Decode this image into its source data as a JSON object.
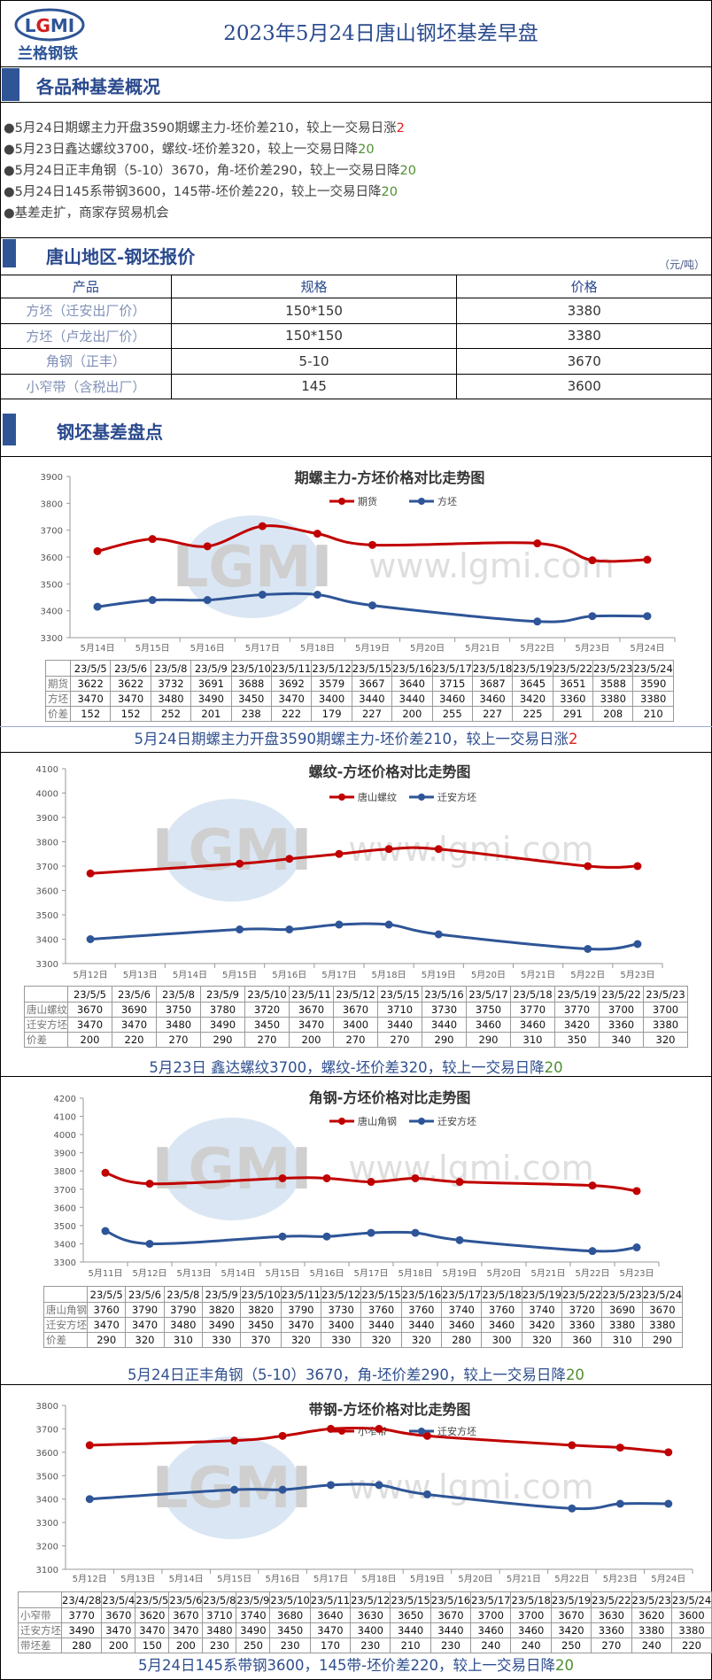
{
  "header": {
    "title": "2023年5月24日唐山钢坯基差早盘",
    "logo_text": "LGMI",
    "logo_cn": "兰格钢铁"
  },
  "overview": {
    "title": "各品种基差概况",
    "bullets": [
      {
        "text": "●5月24日期螺主力开盘3590期螺主力-坯价差210，较上一交易日涨",
        "change": "2",
        "dir": "up"
      },
      {
        "text": "●5月23日鑫达螺纹3700，螺纹-坯价差320，较上一交易日降",
        "change": "20",
        "dir": "down"
      },
      {
        "text": "●5月24日正丰角钢（5-10）3670，角-坯价差290，较上一交易日降",
        "change": "20",
        "dir": "down"
      },
      {
        "text": "●5月24日145系带钢3600，145带-坯价差220，较上一交易日降",
        "change": "20",
        "dir": "down"
      },
      {
        "text": "●基差走扩，商家存贸易机会",
        "change": "",
        "dir": ""
      }
    ]
  },
  "quote": {
    "title": "唐山地区-钢坯报价",
    "unit": "（元/吨）",
    "headers": [
      "产品",
      "规格",
      "价格"
    ],
    "rows": [
      [
        "方坯（迁安出厂价）",
        "150*150",
        "3380"
      ],
      [
        "方坯（卢龙出厂价）",
        "150*150",
        "3380"
      ],
      [
        "角钢（正丰）",
        "5-10",
        "3670"
      ],
      [
        "小窄带（含税出厂）",
        "145",
        "3600"
      ]
    ]
  },
  "basis": {
    "title": "钢坯基差盘点"
  },
  "watermark": {
    "logo": "LGMI",
    "url": "www.lgmi.com"
  },
  "colors": {
    "red": "#c00000",
    "blue": "#2e5597",
    "accent": "#2f5597"
  },
  "chart_data": [
    {
      "type": "line",
      "title": "期螺主力-方坯价格对比走势图",
      "ylim": [
        3300,
        3900
      ],
      "ystep": 100,
      "x": [
        "5月14日",
        "5月15日",
        "5月16日",
        "5月17日",
        "5月18日",
        "5月19日",
        "5月20日",
        "5月21日",
        "5月22日",
        "5月23日",
        "5月24日"
      ],
      "series": [
        {
          "name": "期货",
          "color": "#c00000",
          "values": [
            3622,
            3667,
            3640,
            3715,
            3687,
            3645,
            null,
            null,
            3651,
            3588,
            3590
          ]
        },
        {
          "name": "方坯",
          "color": "#2e5597",
          "values": [
            3415,
            3440,
            3440,
            3460,
            3460,
            3420,
            null,
            null,
            3360,
            3380,
            3380
          ]
        }
      ],
      "table": {
        "dates": [
          "23/5/5",
          "23/5/6",
          "23/5/8",
          "23/5/9",
          "23/5/10",
          "23/5/11",
          "23/5/12",
          "23/5/15",
          "23/5/16",
          "23/5/17",
          "23/5/18",
          "23/5/19",
          "23/5/22",
          "23/5/23",
          "23/5/24"
        ],
        "rows": [
          {
            "label": "期货",
            "values": [
              "3622",
              "3622",
              "3732",
              "3691",
              "3688",
              "3692",
              "3579",
              "3667",
              "3640",
              "3715",
              "3687",
              "3645",
              "3651",
              "3588",
              "3590"
            ]
          },
          {
            "label": "方坯",
            "values": [
              "3470",
              "3470",
              "3480",
              "3490",
              "3450",
              "3470",
              "3400",
              "3440",
              "3440",
              "3460",
              "3460",
              "3420",
              "3360",
              "3380",
              "3380"
            ]
          },
          {
            "label": "价差",
            "values": [
              "152",
              "152",
              "252",
              "201",
              "238",
              "222",
              "179",
              "227",
              "200",
              "255",
              "227",
              "225",
              "291",
              "208",
              "210"
            ]
          }
        ]
      },
      "caption": {
        "text": "5月24日期螺主力开盘3590期螺主力-坯价差210，较上一交易日涨",
        "change": "2",
        "dir": "up"
      }
    },
    {
      "type": "line",
      "title": "螺纹-方坯价格对比走势图",
      "ylim": [
        3300,
        4100
      ],
      "ystep": 100,
      "x": [
        "5月12日",
        "5月13日",
        "5月14日",
        "5月15日",
        "5月16日",
        "5月17日",
        "5月18日",
        "5月19日",
        "5月20日",
        "5月21日",
        "5月22日",
        "5月23日"
      ],
      "series": [
        {
          "name": "唐山螺纹",
          "color": "#c00000",
          "values": [
            3670,
            null,
            null,
            3710,
            3730,
            3750,
            3770,
            3770,
            null,
            null,
            3700,
            3700
          ]
        },
        {
          "name": "迁安方坯",
          "color": "#2e5597",
          "values": [
            3400,
            null,
            null,
            3440,
            3440,
            3460,
            3460,
            3420,
            null,
            null,
            3360,
            3380
          ]
        }
      ],
      "table": {
        "dates": [
          "23/5/5",
          "23/5/6",
          "23/5/8",
          "23/5/9",
          "23/5/10",
          "23/5/11",
          "23/5/12",
          "23/5/15",
          "23/5/16",
          "23/5/17",
          "23/5/18",
          "23/5/19",
          "23/5/22",
          "23/5/23"
        ],
        "rows": [
          {
            "label": "唐山螺纹",
            "values": [
              "3670",
              "3690",
              "3750",
              "3780",
              "3720",
              "3670",
              "3670",
              "3710",
              "3730",
              "3750",
              "3770",
              "3770",
              "3700",
              "3700"
            ]
          },
          {
            "label": "迁安方坯",
            "values": [
              "3470",
              "3470",
              "3480",
              "3490",
              "3450",
              "3470",
              "3400",
              "3440",
              "3440",
              "3460",
              "3460",
              "3420",
              "3360",
              "3380"
            ]
          },
          {
            "label": "价差",
            "values": [
              "200",
              "220",
              "270",
              "290",
              "270",
              "200",
              "270",
              "270",
              "290",
              "290",
              "310",
              "350",
              "340",
              "320"
            ]
          }
        ]
      },
      "caption": {
        "text": "5月23日 鑫达螺纹3700，螺纹-坯价差320，较上一交易日降",
        "change": "20",
        "dir": "down"
      }
    },
    {
      "type": "line",
      "title": "角钢-方坯价格对比走势图",
      "ylim": [
        3300,
        4200
      ],
      "ystep": 100,
      "x": [
        "5月11日",
        "5月12日",
        "5月13日",
        "5月14日",
        "5月15日",
        "5月16日",
        "5月17日",
        "5月18日",
        "5月19日",
        "5月20日",
        "5月21日",
        "5月22日",
        "5月23日"
      ],
      "series": [
        {
          "name": "唐山角钢",
          "color": "#c00000",
          "values": [
            3790,
            3730,
            null,
            null,
            3760,
            3760,
            3740,
            3760,
            3740,
            null,
            null,
            3720,
            3690
          ]
        },
        {
          "name": "迁安方坯",
          "color": "#2e5597",
          "values": [
            3470,
            3400,
            null,
            null,
            3440,
            3440,
            3460,
            3460,
            3420,
            null,
            null,
            3360,
            3380
          ]
        }
      ],
      "table": {
        "dates": [
          "23/5/5",
          "23/5/6",
          "23/5/8",
          "23/5/9",
          "23/5/10",
          "23/5/11",
          "23/5/12",
          "23/5/15",
          "23/5/16",
          "23/5/17",
          "23/5/18",
          "23/5/19",
          "23/5/22",
          "23/5/23",
          "23/5/24"
        ],
        "rows": [
          {
            "label": "唐山角钢",
            "values": [
              "3760",
              "3790",
              "3790",
              "3820",
              "3820",
              "3790",
              "3730",
              "3760",
              "3760",
              "3740",
              "3760",
              "3740",
              "3720",
              "3690",
              "3670"
            ]
          },
          {
            "label": "迁安方坯",
            "values": [
              "3470",
              "3470",
              "3480",
              "3490",
              "3450",
              "3470",
              "3400",
              "3440",
              "3440",
              "3460",
              "3460",
              "3420",
              "3360",
              "3380",
              "3380"
            ]
          },
          {
            "label": "价差",
            "values": [
              "290",
              "320",
              "310",
              "330",
              "370",
              "320",
              "330",
              "320",
              "320",
              "280",
              "300",
              "320",
              "360",
              "310",
              "290"
            ]
          }
        ]
      },
      "caption": {
        "text": "5月24日正丰角钢（5-10）3670，角-坯价差290，较上一交易日降",
        "change": "20",
        "dir": "down"
      }
    },
    {
      "type": "line",
      "title": "带钢-方坯价格对比走势图",
      "ylim": [
        3100,
        3800
      ],
      "ystep": 100,
      "x": [
        "5月12日",
        "5月13日",
        "5月14日",
        "5月15日",
        "5月16日",
        "5月17日",
        "5月18日",
        "5月19日",
        "5月20日",
        "5月21日",
        "5月22日",
        "5月23日",
        "5月24日"
      ],
      "series": [
        {
          "name": "小窄带",
          "color": "#c00000",
          "values": [
            3630,
            null,
            null,
            3650,
            3670,
            3700,
            3700,
            3670,
            null,
            null,
            3630,
            3620,
            3600
          ]
        },
        {
          "name": "迁安方坯",
          "color": "#2e5597",
          "values": [
            3400,
            null,
            null,
            3440,
            3440,
            3460,
            3460,
            3420,
            null,
            null,
            3360,
            3380,
            3380
          ]
        }
      ],
      "table": {
        "dates": [
          "23/4/28",
          "23/5/4",
          "23/5/5",
          "23/5/6",
          "23/5/8",
          "23/5/9",
          "23/5/10",
          "23/5/11",
          "23/5/12",
          "23/5/15",
          "23/5/16",
          "23/5/17",
          "23/5/18",
          "23/5/19",
          "23/5/22",
          "23/5/23",
          "23/5/24"
        ],
        "rows": [
          {
            "label": "小窄带",
            "values": [
              "3770",
              "3670",
              "3620",
              "3670",
              "3710",
              "3740",
              "3680",
              "3640",
              "3630",
              "3650",
              "3670",
              "3700",
              "3700",
              "3670",
              "3630",
              "3620",
              "3600"
            ]
          },
          {
            "label": "迁安方坯",
            "values": [
              "3490",
              "3470",
              "3470",
              "3470",
              "3480",
              "3490",
              "3450",
              "3470",
              "3400",
              "3440",
              "3440",
              "3460",
              "3460",
              "3420",
              "3360",
              "3380",
              "3380"
            ]
          },
          {
            "label": "带坯差",
            "values": [
              "280",
              "200",
              "150",
              "200",
              "230",
              "250",
              "230",
              "170",
              "230",
              "210",
              "230",
              "240",
              "240",
              "250",
              "270",
              "240",
              "220"
            ]
          }
        ]
      },
      "caption": {
        "text": "5月24日145系带钢3600，145带-坯价差220，较上一交易日降",
        "change": "20",
        "dir": "down"
      }
    }
  ]
}
